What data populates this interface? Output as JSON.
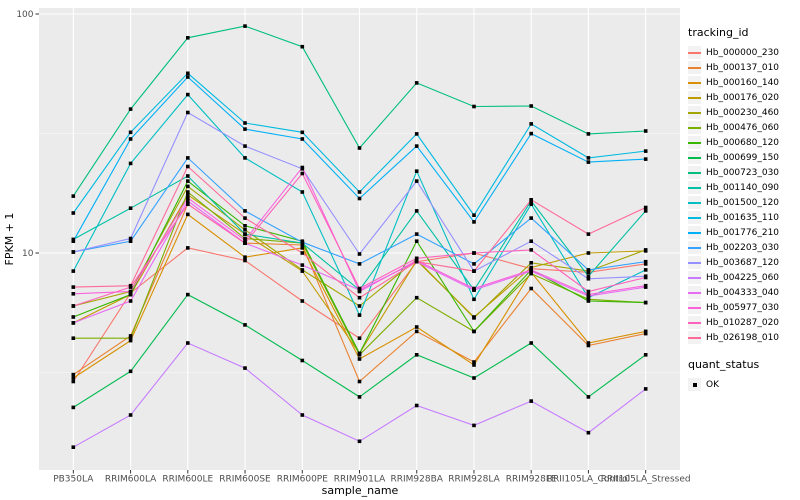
{
  "chart_data": {
    "type": "line",
    "title": "",
    "xlabel": "sample_name",
    "ylabel": "FPKM + 1",
    "y_scale": "log10",
    "y_ticks": [
      100,
      10
    ],
    "y_minor_ticks": [
      31.623,
      3.1623
    ],
    "ylim": [
      1.24,
      106
    ],
    "grid": true,
    "legend_position": "right",
    "legend_title": "tracking_id",
    "point_marker": "black-square",
    "panel_bg": "#EBEBEB",
    "grid_color": "#FFFFFF",
    "axis_text_color": "#4D4D4D",
    "categories": [
      "PB350LA",
      "RRIM600LA",
      "RRIM600LE",
      "RRIM600SE",
      "RRIM600PE",
      "RRIM901LA",
      "RRIM928BA",
      "RRIM928LA",
      "RRIM928LE",
      "RRII105LA_Control",
      "RRII105LA_Stressed"
    ],
    "series": [
      {
        "name": "Hb_000000_230",
        "color": "#F8766D",
        "values": [
          2.9,
          6.8,
          10.5,
          9.3,
          6.3,
          4.4,
          9.2,
          10.0,
          8.6,
          8.3,
          9.0
        ]
      },
      {
        "name": "Hb_000137_010",
        "color": "#EA8331",
        "values": [
          3.1,
          4.5,
          16.0,
          11.0,
          10.8,
          2.9,
          4.7,
          3.5,
          7.1,
          4.1,
          4.6
        ]
      },
      {
        "name": "Hb_000160_140",
        "color": "#D89000",
        "values": [
          3.0,
          4.3,
          14.5,
          9.6,
          10.5,
          3.6,
          4.9,
          3.4,
          8.3,
          4.2,
          4.7
        ]
      },
      {
        "name": "Hb_000176_020",
        "color": "#C09B00",
        "values": [
          5.1,
          6.7,
          17.5,
          12.0,
          8.4,
          3.8,
          9.3,
          5.4,
          8.7,
          10.0,
          10.2
        ]
      },
      {
        "name": "Hb_000230_460",
        "color": "#A3A500",
        "values": [
          6.0,
          6.9,
          19.0,
          12.5,
          8.5,
          6.0,
          9.4,
          5.35,
          9.1,
          8.4,
          10.3
        ]
      },
      {
        "name": "Hb_000476_060",
        "color": "#7CAE00",
        "values": [
          4.4,
          4.4,
          18.0,
          11.5,
          11.0,
          3.75,
          6.5,
          4.7,
          8.2,
          6.4,
          6.2
        ]
      },
      {
        "name": "Hb_000680_120",
        "color": "#39B600",
        "values": [
          5.4,
          6.7,
          20.0,
          13.0,
          11.2,
          3.8,
          11.2,
          4.7,
          8.5,
          6.3,
          6.2
        ]
      },
      {
        "name": "Hb_000699_150",
        "color": "#00BB4E",
        "values": [
          2.26,
          3.2,
          6.7,
          5.0,
          3.55,
          2.5,
          3.75,
          3.0,
          4.2,
          2.5,
          3.75
        ]
      },
      {
        "name": "Hb_000723_030",
        "color": "#00BF7D",
        "values": [
          17.3,
          40.0,
          79.5,
          89.0,
          73.0,
          27.5,
          51.5,
          41.0,
          41.2,
          31.5,
          32.4
        ]
      },
      {
        "name": "Hb_001140_090",
        "color": "#00C1A3",
        "values": [
          11.4,
          15.4,
          21.0,
          12.0,
          11.0,
          7.0,
          15.0,
          7.0,
          16.5,
          8.0,
          15.0
        ]
      },
      {
        "name": "Hb_001500_120",
        "color": "#00BFC4",
        "values": [
          8.4,
          23.7,
          46.0,
          25.0,
          18.0,
          5.5,
          22.0,
          6.4,
          16.0,
          6.5,
          8.5
        ]
      },
      {
        "name": "Hb_001635_110",
        "color": "#00BAE0",
        "values": [
          14.7,
          32.0,
          56.5,
          35.0,
          32.0,
          18.0,
          31.5,
          14.4,
          34.7,
          25.0,
          26.7
        ]
      },
      {
        "name": "Hb_001776_210",
        "color": "#00B0F6",
        "values": [
          11.2,
          30.0,
          54.5,
          33.0,
          30.0,
          16.9,
          28.0,
          13.5,
          31.6,
          24.0,
          24.7
        ]
      },
      {
        "name": "Hb_002203_030",
        "color": "#35A2FF",
        "values": [
          10.1,
          11.2,
          25.0,
          15.0,
          11.1,
          9.0,
          12.0,
          9.0,
          14.0,
          8.5,
          9.2
        ]
      },
      {
        "name": "Hb_003687_120",
        "color": "#9590FF",
        "values": [
          10.1,
          11.5,
          38.7,
          28.0,
          22.5,
          9.9,
          20.0,
          8.4,
          11.2,
          7.8,
          8.0
        ]
      },
      {
        "name": "Hb_004225_060",
        "color": "#C77CFF",
        "values": [
          1.54,
          2.1,
          4.2,
          3.3,
          2.1,
          1.63,
          2.3,
          1.9,
          2.4,
          1.77,
          2.7
        ]
      },
      {
        "name": "Hb_004333_040",
        "color": "#E76BF3",
        "values": [
          5.1,
          6.3,
          16.5,
          11.0,
          8.9,
          7.0,
          9.2,
          7.0,
          8.4,
          6.6,
          7.2
        ]
      },
      {
        "name": "Hb_005977_030",
        "color": "#FA62DB",
        "values": [
          6.75,
          6.9,
          17.0,
          11.3,
          22.8,
          6.9,
          9.3,
          7.1,
          8.5,
          6.7,
          7.3
        ]
      },
      {
        "name": "Hb_010287_020",
        "color": "#FF62BC",
        "values": [
          6.0,
          7.2,
          16.0,
          11.0,
          21.5,
          7.1,
          9.5,
          10.0,
          10.3,
          6.9,
          7.9
        ]
      },
      {
        "name": "Hb_026198_010",
        "color": "#FF6A98",
        "values": [
          7.2,
          7.3,
          23.0,
          14.0,
          10.0,
          6.5,
          9.2,
          8.4,
          16.7,
          12.0,
          15.5
        ]
      }
    ],
    "quant_legend": {
      "title": "quant_status",
      "items": [
        {
          "label": "OK",
          "marker": "black-square"
        }
      ]
    }
  }
}
